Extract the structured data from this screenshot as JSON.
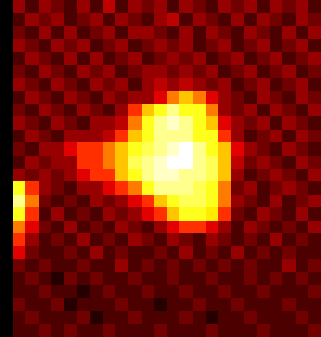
{
  "chart_data": {
    "type": "heatmap",
    "color": "hot",
    "tick_labels": false,
    "zlim": [
      1,
      10
    ],
    "cells": [
      [
        0,
        3,
        2,
        3,
        2.5,
        2,
        3,
        2,
        3.5,
        2,
        3,
        2.5,
        3,
        2,
        3,
        2.5,
        2,
        3,
        2.5,
        3,
        2,
        3,
        2.5,
        3,
        2
      ],
      [
        0,
        2,
        3,
        2.5,
        3,
        2,
        2.5,
        3,
        2,
        3,
        2.5,
        2,
        3,
        3.5,
        2,
        3,
        2.5,
        2,
        3,
        2,
        3,
        2.5,
        2,
        3,
        2.5
      ],
      [
        0,
        2.5,
        2,
        3,
        2,
        3,
        2,
        2.5,
        3,
        2,
        3,
        3,
        2.5,
        2,
        3,
        2,
        3,
        2.5,
        2,
        3,
        2.5,
        2,
        3,
        2,
        3
      ],
      [
        0,
        3,
        2.5,
        2,
        3,
        2.5,
        3,
        2,
        2.5,
        3,
        2,
        2.5,
        3,
        2.5,
        3,
        2,
        2.5,
        3,
        2,
        2.5,
        3,
        2,
        2.5,
        3,
        2
      ],
      [
        0,
        2,
        3,
        2.5,
        2,
        3,
        2,
        3,
        2,
        2.5,
        3,
        2,
        2.5,
        3,
        2.5,
        3,
        2,
        2.5,
        3,
        2,
        2.5,
        3,
        2,
        2.5,
        3
      ],
      [
        0,
        2.5,
        2,
        3,
        2.5,
        2,
        3,
        2.5,
        3,
        2,
        2.5,
        3,
        3,
        2.5,
        3,
        2.5,
        3,
        2,
        2.5,
        3,
        2,
        2.5,
        3,
        2,
        2.5
      ],
      [
        0,
        3,
        2.5,
        2,
        3,
        2.5,
        2,
        3,
        2.5,
        3,
        2,
        3,
        3.5,
        3,
        3.5,
        3,
        2.5,
        3,
        2,
        2.5,
        3,
        2,
        2.5,
        3,
        2
      ],
      [
        0,
        2,
        3,
        2.5,
        2,
        3,
        2.5,
        2,
        3,
        2.5,
        3,
        3,
        4,
        6,
        7,
        6,
        4,
        3,
        2.5,
        2,
        3,
        2.5,
        2,
        3,
        2.5
      ],
      [
        0,
        2.5,
        2,
        3,
        2.5,
        2,
        3,
        2.5,
        2,
        3,
        5,
        7,
        8,
        9,
        8,
        8,
        6,
        3,
        2.5,
        3,
        2,
        3,
        2.5,
        2,
        3
      ],
      [
        0,
        3,
        2.5,
        2,
        3,
        2.5,
        2,
        3,
        3,
        3.5,
        6,
        8,
        9,
        9.5,
        9,
        8,
        7,
        4,
        3,
        2.5,
        3,
        2,
        3,
        2.5,
        2
      ],
      [
        0,
        2,
        3,
        2.5,
        2,
        3,
        3,
        3,
        3.5,
        5,
        7,
        8,
        9,
        9,
        9,
        8,
        8,
        5,
        3,
        2,
        2.5,
        3,
        2,
        3,
        2.5
      ],
      [
        0,
        2.5,
        2,
        3,
        3,
        4,
        5,
        5,
        6,
        7,
        8,
        8.5,
        9,
        9.5,
        10,
        9,
        8,
        7,
        4,
        3,
        2.5,
        2,
        3,
        2.5,
        2
      ],
      [
        0,
        2,
        3,
        2.5,
        3,
        3,
        5,
        5,
        6,
        7,
        8.5,
        9,
        9.5,
        10,
        10,
        9,
        8.5,
        7,
        3.5,
        2.5,
        3,
        2.5,
        2,
        3,
        2.5
      ],
      [
        0,
        3,
        2.5,
        3,
        2.5,
        3,
        4,
        5,
        5,
        7,
        8,
        9,
        9.5,
        9.5,
        9,
        9,
        8.5,
        7,
        3,
        2,
        2.5,
        3,
        2.5,
        2,
        3
      ],
      [
        0,
        8,
        5,
        3,
        2.5,
        2,
        3,
        3,
        4,
        5,
        6,
        8,
        9,
        9,
        9,
        8.5,
        8,
        6,
        2.5,
        3,
        2,
        2.5,
        3,
        2.5,
        2
      ],
      [
        0,
        9,
        6,
        2.5,
        2,
        2.5,
        2,
        3,
        2.5,
        3,
        4,
        5,
        7,
        8,
        8.5,
        8.5,
        8,
        6,
        3,
        2.5,
        2,
        3,
        2,
        2.5,
        3
      ],
      [
        0,
        8,
        5,
        2,
        3,
        2,
        2.5,
        2,
        3,
        2.5,
        3,
        4,
        5,
        7,
        8,
        8,
        7.5,
        5,
        2.5,
        2,
        3,
        2.5,
        2,
        3,
        2
      ],
      [
        0,
        6,
        4,
        2.5,
        2,
        3,
        2,
        2.5,
        2,
        3,
        2.5,
        2,
        3,
        4,
        5,
        5,
        4,
        3,
        2,
        3,
        2.5,
        2,
        2.5,
        2,
        3
      ],
      [
        0,
        5,
        3,
        2,
        2.5,
        2,
        3,
        2,
        2.5,
        2,
        3,
        2.5,
        2,
        3,
        2.5,
        2,
        3,
        2.5,
        2,
        2.5,
        2,
        3,
        2,
        2.5,
        2
      ],
      [
        0,
        4,
        2.5,
        2,
        2,
        2.5,
        2,
        3,
        2,
        2.5,
        2,
        2,
        2.5,
        2,
        3,
        2,
        2.5,
        2,
        3,
        2,
        2.5,
        2,
        2.5,
        2,
        2
      ],
      [
        0,
        2.5,
        2,
        2.5,
        2,
        2,
        2.5,
        2,
        2,
        3,
        2,
        2.5,
        2,
        2.5,
        2,
        2.5,
        2,
        2.5,
        2,
        2.5,
        2,
        2,
        3,
        2,
        2.5
      ],
      [
        0,
        2,
        2.5,
        2,
        1.5,
        2.5,
        2,
        2.5,
        2,
        2,
        2.5,
        2,
        2,
        2.5,
        2,
        2,
        2.5,
        2,
        2,
        2.5,
        2,
        2.5,
        2,
        2.5,
        2
      ],
      [
        0,
        2,
        2,
        2.5,
        2,
        2,
        1.5,
        2,
        2.5,
        2,
        2,
        2.5,
        2,
        2,
        2.5,
        2,
        2,
        2.5,
        2,
        2,
        2.5,
        2,
        2,
        2,
        2.5
      ],
      [
        0,
        2.5,
        2,
        2,
        2.5,
        1.5,
        2,
        2,
        2,
        2.5,
        2,
        2,
        1.5,
        2,
        2,
        2.5,
        2,
        2,
        2.5,
        2,
        2,
        2,
        2.5,
        2,
        2
      ],
      [
        0,
        2,
        2.5,
        2,
        2,
        2,
        2.5,
        1.5,
        2,
        2,
        2.5,
        2,
        2,
        2,
        2.5,
        2,
        1.5,
        2,
        2,
        2.5,
        2,
        2,
        2,
        2.5,
        2
      ],
      [
        0,
        2,
        2,
        2.5,
        2,
        2.5,
        2,
        2,
        2.5,
        2,
        2,
        2,
        2.5,
        2,
        2,
        2,
        2.5,
        2,
        2,
        2,
        2.5,
        2,
        2,
        2,
        2.5
      ]
    ]
  }
}
